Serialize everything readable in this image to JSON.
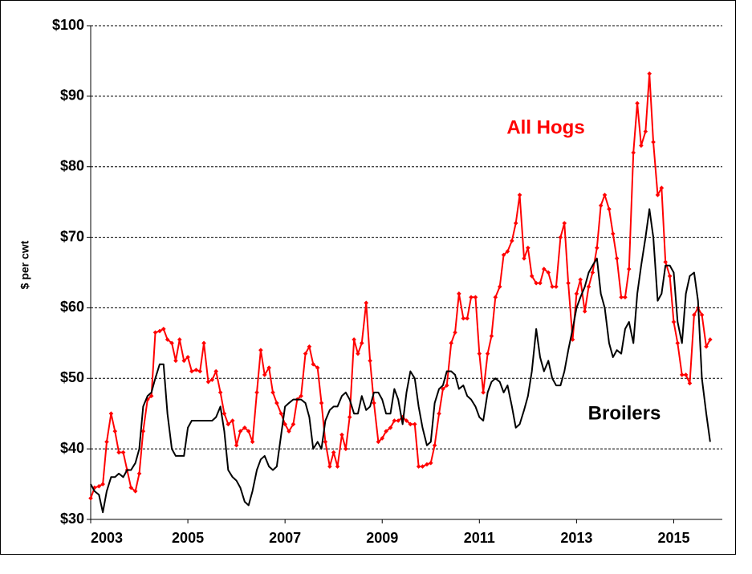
{
  "chart_data": {
    "type": "line",
    "y_label": "$ per cwt",
    "xlim": [
      2003,
      2016
    ],
    "xticks": [
      2003,
      2005,
      2007,
      2009,
      2011,
      2013,
      2015
    ],
    "ylim": [
      30,
      100
    ],
    "yticks": [
      {
        "value": 30,
        "label": "$30"
      },
      {
        "value": 40,
        "label": "$40"
      },
      {
        "value": 50,
        "label": "$50"
      },
      {
        "value": 60,
        "label": "$60"
      },
      {
        "value": 70,
        "label": "$70"
      },
      {
        "value": 80,
        "label": "$80"
      },
      {
        "value": 90,
        "label": "$90"
      },
      {
        "value": 100,
        "label": "$100"
      }
    ],
    "grid": true,
    "x": [
      2003,
      2003.08,
      2003.17,
      2003.25,
      2003.33,
      2003.42,
      2003.5,
      2003.58,
      2003.67,
      2003.75,
      2003.83,
      2003.92,
      2004,
      2004.08,
      2004.17,
      2004.25,
      2004.33,
      2004.42,
      2004.5,
      2004.58,
      2004.67,
      2004.75,
      2004.83,
      2004.92,
      2005,
      2005.08,
      2005.17,
      2005.25,
      2005.33,
      2005.42,
      2005.5,
      2005.58,
      2005.67,
      2005.75,
      2005.83,
      2005.92,
      2006,
      2006.08,
      2006.17,
      2006.25,
      2006.33,
      2006.42,
      2006.5,
      2006.58,
      2006.67,
      2006.75,
      2006.83,
      2006.92,
      2007,
      2007.08,
      2007.17,
      2007.25,
      2007.33,
      2007.42,
      2007.5,
      2007.58,
      2007.67,
      2007.75,
      2007.83,
      2007.92,
      2008,
      2008.08,
      2008.17,
      2008.25,
      2008.33,
      2008.42,
      2008.5,
      2008.58,
      2008.67,
      2008.75,
      2008.83,
      2008.92,
      2009,
      2009.08,
      2009.17,
      2009.25,
      2009.33,
      2009.42,
      2009.5,
      2009.58,
      2009.67,
      2009.75,
      2009.83,
      2009.92,
      2010,
      2010.08,
      2010.17,
      2010.25,
      2010.33,
      2010.42,
      2010.5,
      2010.58,
      2010.67,
      2010.75,
      2010.83,
      2010.92,
      2011,
      2011.08,
      2011.17,
      2011.25,
      2011.33,
      2011.42,
      2011.5,
      2011.58,
      2011.67,
      2011.75,
      2011.83,
      2011.92,
      2012,
      2012.08,
      2012.17,
      2012.25,
      2012.33,
      2012.42,
      2012.5,
      2012.58,
      2012.67,
      2012.75,
      2012.83,
      2012.92,
      2013,
      2013.08,
      2013.17,
      2013.25,
      2013.33,
      2013.42,
      2013.5,
      2013.58,
      2013.67,
      2013.75,
      2013.83,
      2013.92,
      2014,
      2014.08,
      2014.17,
      2014.25,
      2014.33,
      2014.42,
      2014.5,
      2014.58,
      2014.67,
      2014.75,
      2014.83,
      2014.92,
      2015,
      2015.08,
      2015.17,
      2015.25,
      2015.33,
      2015.42,
      2015.5,
      2015.58,
      2015.67,
      2015.75
    ],
    "series": [
      {
        "name": "All Hogs",
        "color": "#ff0000",
        "marker": "diamond",
        "values": [
          33,
          34.5,
          34.7,
          35,
          41,
          45,
          42.5,
          39.5,
          39.5,
          37,
          34.5,
          34,
          36.5,
          42.5,
          47,
          47.5,
          56.5,
          56.7,
          57,
          55.5,
          55,
          52.5,
          55.5,
          52.5,
          53,
          51,
          51.2,
          51,
          55,
          49.5,
          49.8,
          51,
          48,
          45,
          43.5,
          44,
          40.5,
          42.5,
          43,
          42.5,
          41,
          48,
          54,
          50.5,
          51.5,
          48,
          46.5,
          45,
          43.5,
          42.5,
          43.5,
          47,
          47.5,
          53.5,
          54.5,
          52,
          51.5,
          46.5,
          41,
          37.5,
          39.5,
          37.5,
          42,
          40,
          44.5,
          55.5,
          53.5,
          55,
          60.7,
          52.5,
          46.5,
          41,
          41.5,
          42.5,
          43,
          44,
          44,
          44.5,
          44,
          43.5,
          43.5,
          37.5,
          37.5,
          37.8,
          38,
          40.5,
          45,
          48.5,
          49,
          55,
          56.5,
          62,
          58.5,
          58.5,
          61.5,
          61.5,
          53.5,
          48,
          53.5,
          56,
          61.5,
          63,
          67.5,
          68,
          69.5,
          72,
          76,
          67,
          68.5,
          64.5,
          63.5,
          63.5,
          65.5,
          65,
          63,
          63,
          70,
          72,
          63.5,
          55.5,
          62,
          64,
          59.5,
          63,
          65,
          68.5,
          74.5,
          76,
          74,
          70.5,
          67,
          61.5,
          61.5,
          65.5,
          82,
          89,
          83,
          85,
          93.2,
          83.5,
          76,
          77,
          66.5,
          64.5,
          58,
          55,
          50.5,
          50.5,
          49.3,
          59,
          60,
          59,
          54.5,
          55.5
        ]
      },
      {
        "name": "Broilers",
        "color": "#000000",
        "marker": "none",
        "values": [
          35,
          34,
          33.5,
          31,
          34,
          36,
          36,
          36.5,
          36,
          37,
          37,
          38,
          40,
          46,
          47.5,
          48,
          50,
          52,
          52,
          45,
          40,
          39,
          39,
          39,
          43,
          44,
          44,
          44,
          44,
          44,
          44,
          44.5,
          46,
          42.5,
          37,
          36,
          35.5,
          34.5,
          32.5,
          32,
          34,
          37,
          38.5,
          39,
          37.5,
          37,
          37.5,
          42,
          46,
          46.5,
          47,
          47,
          47,
          46.5,
          44.5,
          40,
          41,
          40,
          44,
          45.5,
          46,
          46,
          47.5,
          48,
          47,
          45,
          45,
          47.5,
          45.5,
          46,
          48,
          48,
          47,
          45,
          45,
          48.5,
          47,
          43.5,
          48,
          51,
          50,
          46,
          43,
          40.5,
          41,
          46.5,
          48.5,
          49,
          51,
          51,
          50.5,
          48.5,
          49,
          47.5,
          47,
          46,
          44.5,
          44,
          48,
          49.5,
          50,
          49.5,
          48,
          49,
          46,
          43,
          43.5,
          45.5,
          47.5,
          51,
          57,
          53,
          51,
          52.5,
          50,
          49,
          49,
          51,
          54,
          57,
          60,
          61.5,
          63,
          65,
          66,
          67,
          62,
          60,
          55,
          53,
          54,
          53.5,
          57,
          58,
          55,
          62,
          66,
          70,
          74,
          70,
          61,
          62,
          66,
          66,
          65,
          58,
          55,
          62,
          64.5,
          65,
          61,
          50,
          45,
          41
        ]
      }
    ]
  }
}
